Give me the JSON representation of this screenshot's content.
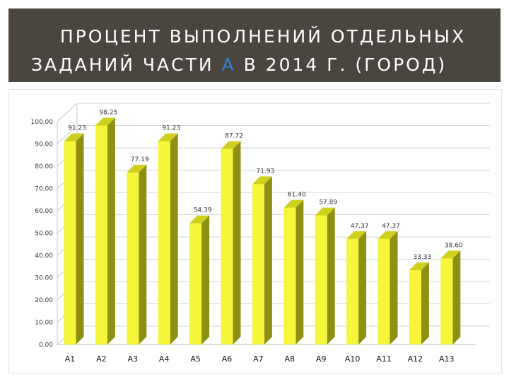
{
  "header": {
    "line1": "ПРОЦЕНТ ВЫПОЛНЕНИЙ ОТДЕЛЬНЫХ",
    "line2_pre": "ЗАДАНИЙ ЧАСТИ ",
    "line2_accent": "А",
    "line2_post": " В 2014 Г. (ГОРОД)"
  },
  "colors": {
    "header_bg": "#4b4540",
    "accent": "#2f7fd1",
    "bar_front": "#f5f53a",
    "bar_side": "#8f8f12",
    "bar_top": "#cfcf1e"
  },
  "chart_data": {
    "type": "bar",
    "categories": [
      "А1",
      "А2",
      "А3",
      "А4",
      "А5",
      "А6",
      "А7",
      "А8",
      "А9",
      "А10",
      "А11",
      "А12",
      "А13"
    ],
    "values": [
      91.23,
      98.25,
      77.19,
      91.23,
      54.39,
      87.72,
      71.93,
      61.4,
      57.89,
      47.37,
      47.37,
      33.33,
      38.6
    ],
    "value_labels": [
      "91.23",
      "98.25",
      "77.19",
      "91.23",
      "54.39",
      "87.72",
      "71.93",
      "61.40",
      "57.89",
      "47.37",
      "47.37",
      "33.33",
      "38.60"
    ],
    "y_ticks": [
      "0.00",
      "10.00",
      "20.00",
      "30.00",
      "40.00",
      "50.00",
      "60.00",
      "70.00",
      "80.00",
      "90.00",
      "100.00"
    ],
    "ylim": [
      0,
      100
    ],
    "grid": true,
    "style": "3d-column"
  }
}
